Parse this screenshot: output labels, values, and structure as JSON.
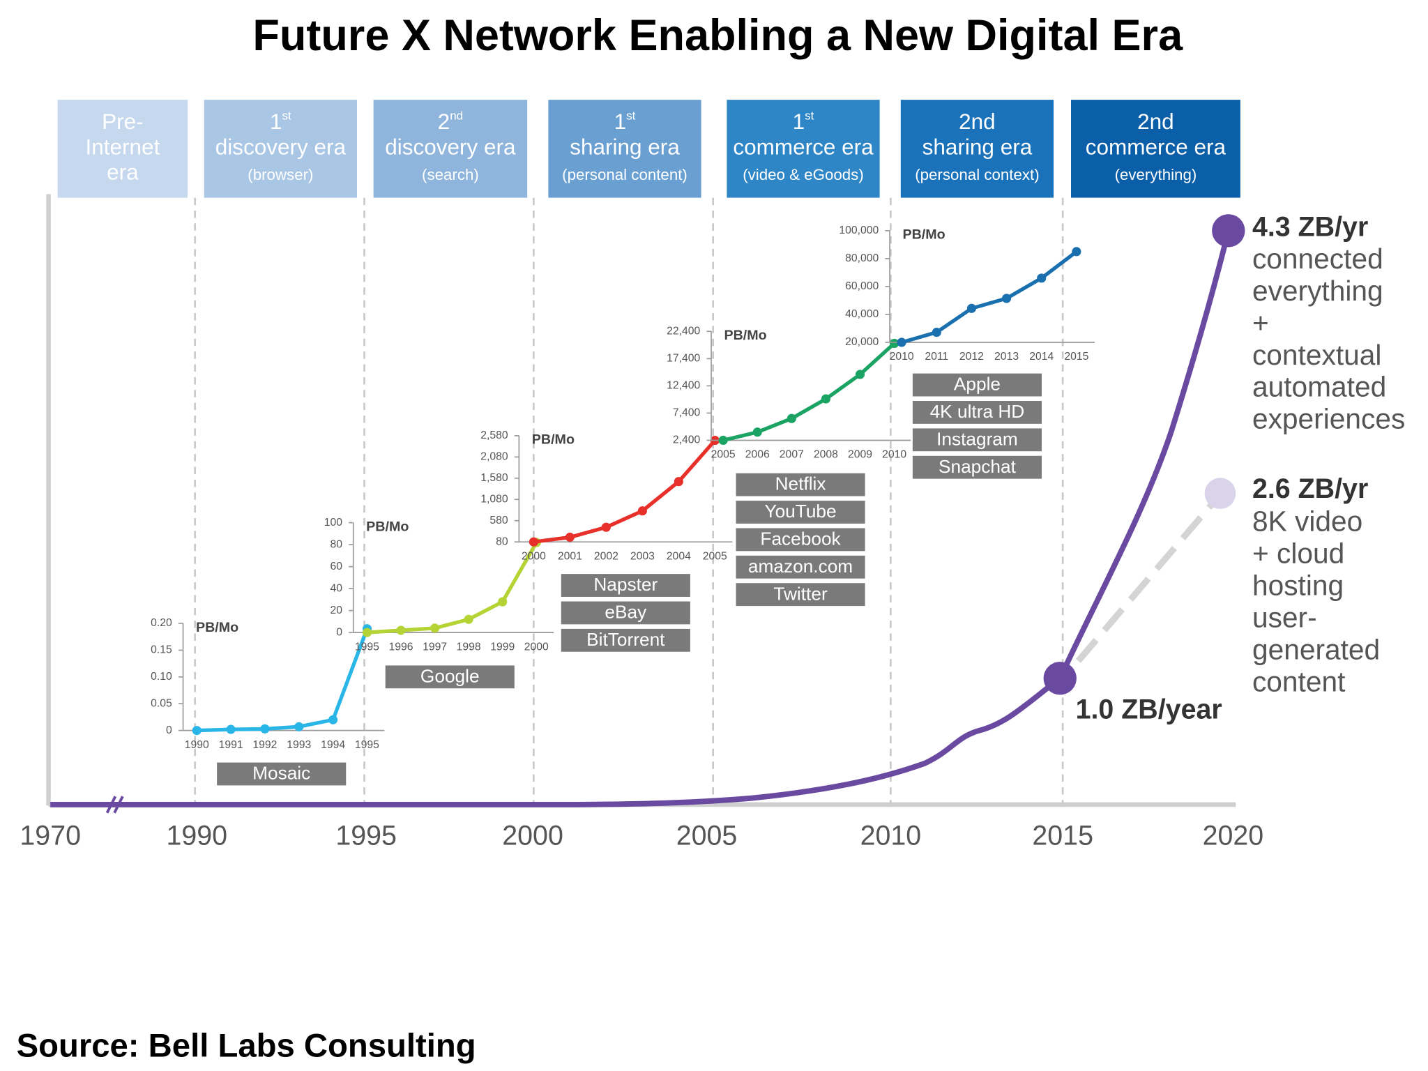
{
  "title": "Future X Network Enabling a New Digital Era",
  "source": "Source: Bell Labs Consulting",
  "eras": [
    {
      "lines": [
        "Pre-",
        "Internet",
        "era"
      ],
      "color": "#c5d8ee"
    },
    {
      "lines": [
        "1",
        "discovery era"
      ],
      "sup": "st",
      "note": "(browser)",
      "color": "#a9c6e4"
    },
    {
      "lines": [
        "2",
        "discovery era"
      ],
      "sup": "nd",
      "note": "(search)",
      "color": "#8fb5dc"
    },
    {
      "lines": [
        "1",
        "sharing era"
      ],
      "sup": "st",
      "note": "(personal content)",
      "color": "#6a9fd2"
    },
    {
      "lines": [
        "1",
        "commerce era"
      ],
      "sup": "st",
      "note": "(video & eGoods)",
      "color": "#2e86c7"
    },
    {
      "lines": [
        "2nd",
        "sharing era"
      ],
      "note": "(personal context)",
      "color": "#1a72bb"
    },
    {
      "lines": [
        "2nd",
        "commerce era"
      ],
      "note": "(everything)",
      "color": "#0a5fa8"
    }
  ],
  "timeline": {
    "years": [
      1970,
      1990,
      1995,
      2000,
      2005,
      2010,
      2015,
      2020
    ]
  },
  "callouts": [
    {
      "label": "4.3 ZB/yr",
      "lines": [
        "connected",
        "everything",
        "+",
        "contextual",
        "automated",
        "experiences"
      ]
    },
    {
      "label": "2.6 ZB/yr",
      "lines": [
        "8K video",
        "+ cloud",
        "hosting",
        "user-",
        "generated",
        "content"
      ]
    },
    {
      "label": "1.0 ZB/year"
    }
  ],
  "chart_data": [
    {
      "type": "line",
      "y_label": "PB/Mo",
      "color": "#29b6e6",
      "x": [
        1990,
        1991,
        1992,
        1993,
        1994,
        1995
      ],
      "xlim": [
        1990,
        1995
      ],
      "values": [
        0,
        0.002,
        0.003,
        0.007,
        0.02,
        0.19
      ],
      "ylim": [
        0,
        0.2
      ],
      "yticks": [
        0,
        0.05,
        {
          "value": 0.1,
          "label": "0.10"
        },
        0.15,
        {
          "value": 0.2,
          "label": "0.20"
        }
      ],
      "apps": [
        "Mosaic"
      ]
    },
    {
      "type": "line",
      "y_label": "PB/Mo",
      "color": "#b5d334",
      "x": [
        1995,
        1996,
        1997,
        1998,
        1999,
        2000
      ],
      "xlim": [
        1995,
        2000
      ],
      "values": [
        0,
        2,
        4,
        12,
        28,
        82
      ],
      "ylim": [
        0,
        100
      ],
      "yticks": [
        0,
        20,
        40,
        60,
        80,
        100
      ],
      "apps": [
        "Google"
      ]
    },
    {
      "type": "line",
      "y_label": "PB/Mo",
      "color": "#e8302a",
      "x": [
        2000,
        2001,
        2002,
        2003,
        2004,
        2005
      ],
      "xlim": [
        2000,
        2005
      ],
      "values": [
        80,
        190,
        425,
        810,
        1500,
        2470
      ],
      "ylim": [
        80,
        2580
      ],
      "yticks": [
        80,
        580,
        {
          "value": 1080,
          "label": "1,080"
        },
        {
          "value": 1580,
          "label": "1,580"
        },
        {
          "value": 2080,
          "label": "2,080"
        },
        {
          "value": 2580,
          "label": "2,580"
        }
      ],
      "apps": [
        "Napster",
        "eBay",
        "BitTorrent"
      ]
    },
    {
      "type": "line",
      "y_label": "PB/Mo",
      "color": "#1aa363",
      "x": [
        2005,
        2006,
        2007,
        2008,
        2009,
        2010
      ],
      "xlim": [
        2005,
        2010
      ],
      "values": [
        2400,
        3900,
        6400,
        10000,
        14500,
        20200
      ],
      "ylim": [
        2400,
        22400
      ],
      "yticks": [
        {
          "value": 2400,
          "label": "2,400"
        },
        {
          "value": 7400,
          "label": "7,400"
        },
        {
          "value": 12400,
          "label": "12,400"
        },
        {
          "value": 17400,
          "label": "17,400"
        },
        {
          "value": 22400,
          "label": "22,400"
        }
      ],
      "apps": [
        "Netflix",
        "YouTube",
        "Facebook",
        "amazon.com",
        "Twitter"
      ]
    },
    {
      "type": "line",
      "y_label": "PB/Mo",
      "color": "#1a6faf",
      "x": [
        2010,
        2011,
        2012,
        2013,
        2014,
        2015
      ],
      "xlim": [
        2010,
        2015
      ],
      "values": [
        20000,
        27200,
        44300,
        51500,
        66000,
        85000
      ],
      "ylim": [
        20000,
        100000
      ],
      "yticks": [
        {
          "value": 20000,
          "label": "20,000"
        },
        {
          "value": 40000,
          "label": "40,000"
        },
        {
          "value": 60000,
          "label": "60,000"
        },
        {
          "value": 80000,
          "label": "80,000"
        },
        {
          "value": 100000,
          "label": "100,000"
        }
      ],
      "apps": [
        "Apple",
        "4K ultra HD",
        "Instagram",
        "Snapchat"
      ]
    }
  ]
}
